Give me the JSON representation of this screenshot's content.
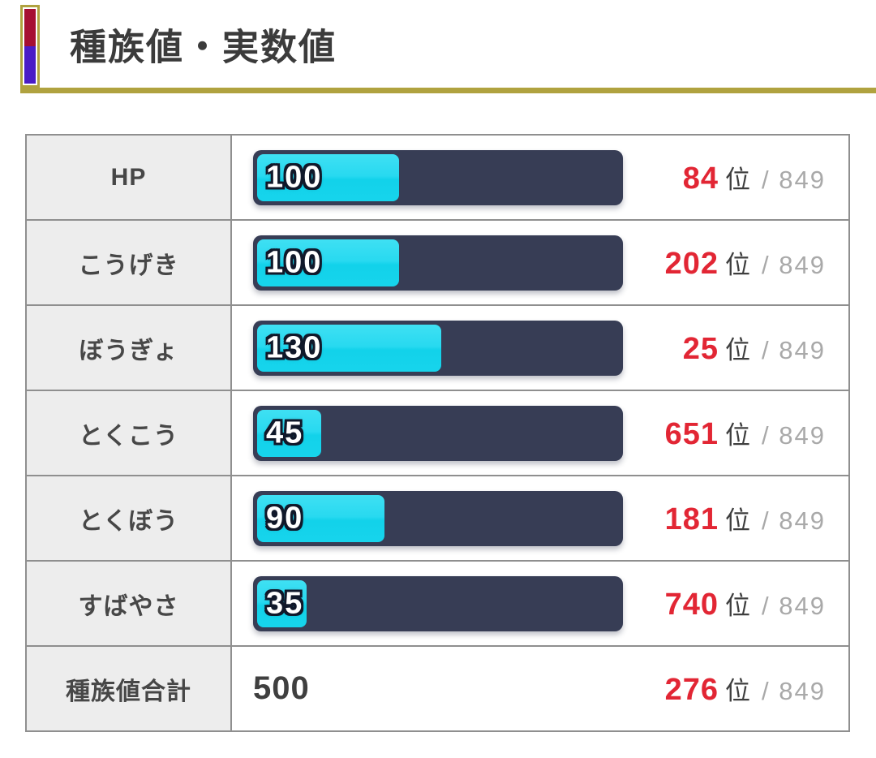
{
  "header": {
    "title": "種族値・実数値",
    "accent_gold": "#b0a23f",
    "marker_red": "#a60f33",
    "marker_purple": "#4a1cc6"
  },
  "table": {
    "rank_unit": "位",
    "rank_denominator": "/ 849",
    "max_stat": 255,
    "colors": {
      "bar_track": "#373d55",
      "bar_fill_top": "#3fe0f3",
      "bar_fill_bottom": "#12d2ea",
      "rank_red": "#e22634",
      "label_bg": "#ededed",
      "border": "#8f8f8f"
    },
    "rows": [
      {
        "label": "HP",
        "value": 100,
        "rank": "84",
        "bar": true
      },
      {
        "label": "こうげき",
        "value": 100,
        "rank": "202",
        "bar": true
      },
      {
        "label": "ぼうぎょ",
        "value": 130,
        "rank": "25",
        "bar": true
      },
      {
        "label": "とくこう",
        "value": 45,
        "rank": "651",
        "bar": true
      },
      {
        "label": "とくぼう",
        "value": 90,
        "rank": "181",
        "bar": true
      },
      {
        "label": "すばやさ",
        "value": 35,
        "rank": "740",
        "bar": true
      },
      {
        "label": "種族値合計",
        "value": 500,
        "rank": "276",
        "bar": false
      }
    ]
  },
  "chart_data": {
    "type": "bar",
    "orientation": "horizontal",
    "title": "種族値・実数値",
    "categories": [
      "HP",
      "こうげき",
      "ぼうぎょ",
      "とくこう",
      "とくぼう",
      "すばやさ"
    ],
    "values": [
      100,
      100,
      130,
      45,
      90,
      35
    ],
    "ranks": [
      84,
      202,
      25,
      651,
      181,
      740
    ],
    "rank_out_of": 849,
    "total": {
      "label": "種族値合計",
      "value": 500,
      "rank": 276
    },
    "xlim": [
      0,
      255
    ],
    "grid": false,
    "legend": false
  }
}
